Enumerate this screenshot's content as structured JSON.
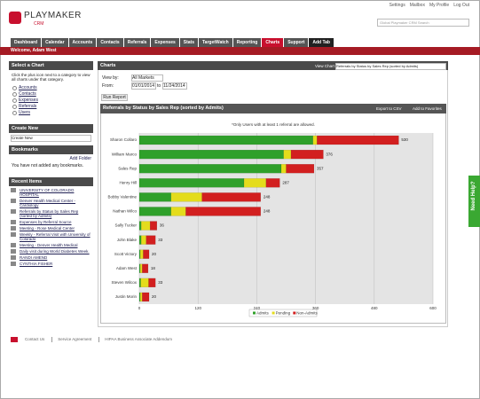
{
  "header": {
    "logo": "PLAYMAKER",
    "logo_sub": "CRM",
    "links": [
      "Settings",
      "Mailbox",
      "My Profile",
      "Log Out"
    ],
    "search_placeholder": "Global Playmaker CRM Search"
  },
  "nav": {
    "tabs": [
      "Dashboard",
      "Calendar",
      "Accounts",
      "Contacts",
      "Referrals",
      "Expenses",
      "Stats",
      "TargetWatch",
      "Reporting",
      "Charts",
      "Support",
      "Add Tab"
    ],
    "active": "Charts"
  },
  "welcome": "Welcome, Adam West",
  "sidebar": {
    "select_chart": {
      "title": "Select a Chart",
      "text": "Click the plus icon next to a category to view all charts under that category.",
      "items": [
        "Accounts",
        "Contacts",
        "Expenses",
        "Referrals",
        "Users"
      ]
    },
    "create_new": {
      "title": "Create New",
      "select": "Create New"
    },
    "bookmarks": {
      "title": "Bookmarks",
      "add": "Add Folder",
      "empty": "You have not added any bookmarks."
    },
    "recent": {
      "title": "Recent Items",
      "items": [
        "UNIVERSITY OF COLORADO HOSPITAL",
        "Denver Health Medical Center - Cardiology",
        "Referrals by Status by Sales Rep (sorted by Admits)",
        "Expenses by Referral Source",
        "Meeting - Rose Medical Center",
        "Weekly - Referral Visit with University of Colorado",
        "Meeting - Denver Health Medical",
        "Daily visit during World Diabetes Week.",
        "RANDI AMEND",
        "CYNTHIA FISHER"
      ]
    }
  },
  "main": {
    "title": "Charts",
    "view_chart_label": "View Chart",
    "view_chart_value": "Referrals by Status by Sales Rep (sorted by Admits)",
    "view_by_label": "View by:",
    "view_by_value": "All Markets",
    "from_label": "From:",
    "from": "01/01/2014",
    "to_label": "to",
    "to": "11/24/2014",
    "run": "Run Report",
    "export": "Export to CSV",
    "favorites": "Add to Favorites"
  },
  "chart_data": {
    "type": "bar",
    "orientation": "horizontal",
    "stacked": true,
    "title": "Referrals by Status by Sales Rep (sorted by Admits)",
    "note": "*Only Users with at least 1 referral are allowed.",
    "categories": [
      "Sharon Collaro",
      "William Marco",
      "Sales Rep",
      "Henry Hill",
      "Bobby Valentine",
      "Nathan Wilco",
      "Sally Tucker",
      "John Blake",
      "Scott Victory",
      "Adam West",
      "Steven Wilcox",
      "Justin Morin"
    ],
    "series": [
      {
        "name": "Admits",
        "color": "#2fa02a",
        "values": [
          355,
          295,
          290,
          214,
          65,
          65,
          4,
          4,
          2,
          2,
          3,
          2
        ]
      },
      {
        "name": "Pending",
        "color": "#e4dc1c",
        "values": [
          8,
          15,
          10,
          45,
          63,
          30,
          18,
          10,
          6,
          4,
          16,
          4
        ]
      },
      {
        "name": "Non-Admits",
        "color": "#d21f1f",
        "values": [
          167,
          66,
          57,
          28,
          120,
          153,
          14,
          19,
          12,
          12,
          14,
          14
        ]
      }
    ],
    "totals": [
      530,
      376,
      357,
      287,
      248,
      248,
      36,
      33,
      20,
      18,
      33,
      20
    ],
    "xlim": [
      0,
      600
    ],
    "xticks": [
      0,
      120,
      240,
      360,
      480,
      600
    ],
    "grid": true
  },
  "footer": {
    "links": [
      "Contact Us",
      "Service Agreement",
      "HIPAA Business Associate Addendum"
    ]
  },
  "help": "Need Help?"
}
